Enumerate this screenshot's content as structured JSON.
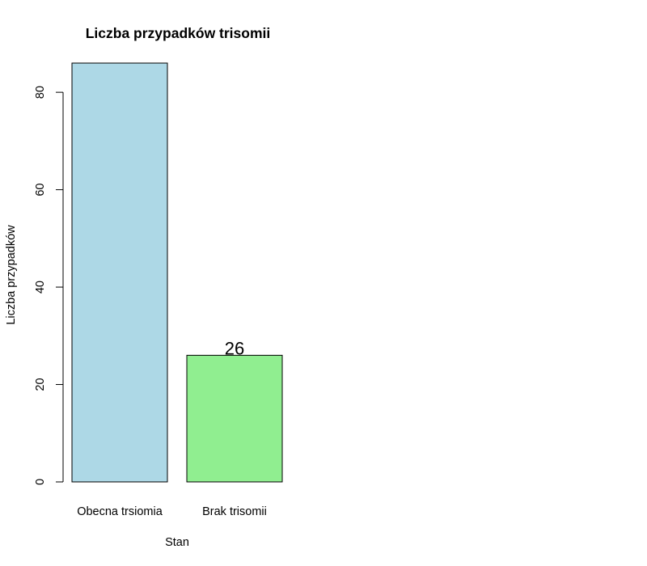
{
  "chart_data": {
    "type": "bar",
    "title": "Liczba przypadków trisomii",
    "xlabel": "Stan",
    "ylabel": "Liczba przypadków",
    "categories": [
      "Obecna trsiomia",
      "Brak trisomii"
    ],
    "values": [
      86,
      26
    ],
    "data_labels": [
      "",
      "26"
    ],
    "colors": [
      "#ADD8E6",
      "#90EE90"
    ],
    "yticks": [
      0,
      20,
      40,
      60,
      80
    ],
    "ylim": [
      0,
      86
    ],
    "grid": false,
    "legend": "none"
  }
}
